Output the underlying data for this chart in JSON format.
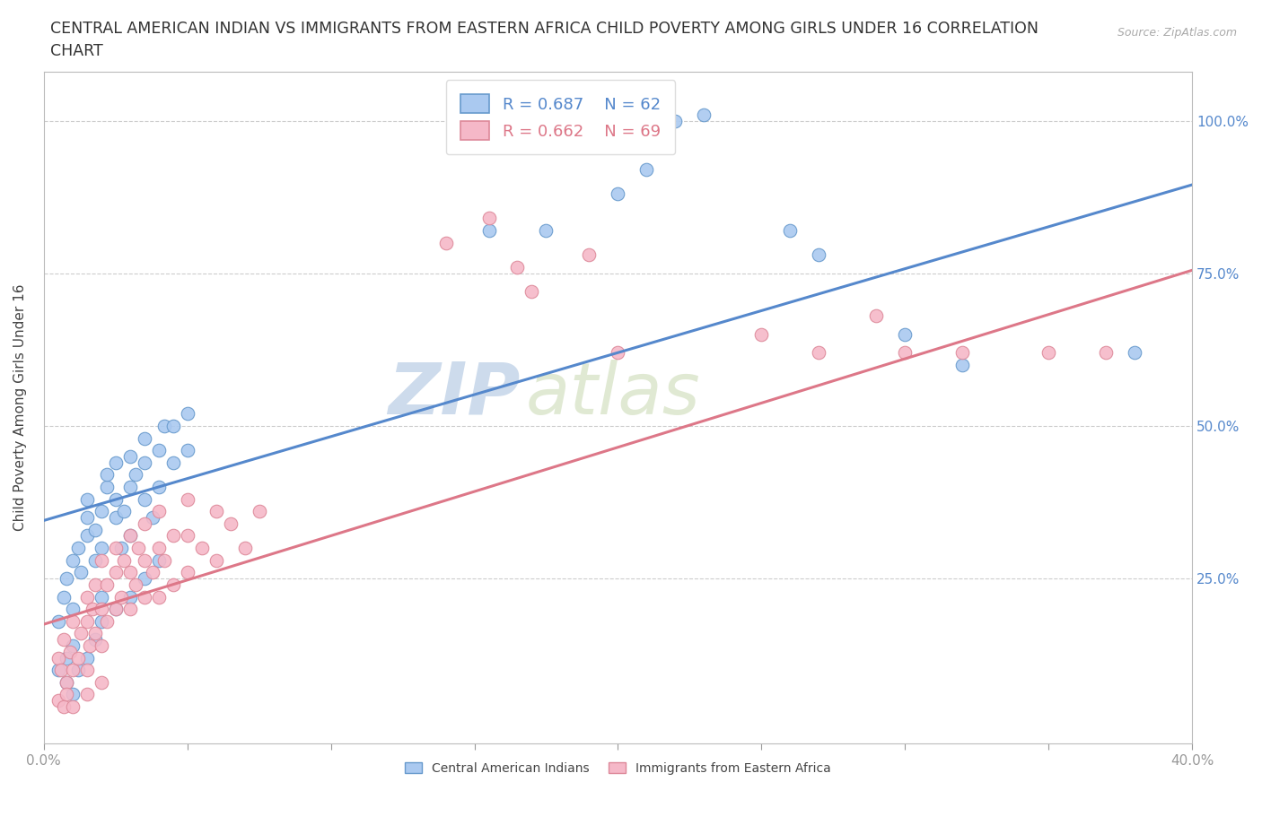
{
  "title_line1": "CENTRAL AMERICAN INDIAN VS IMMIGRANTS FROM EASTERN AFRICA CHILD POVERTY AMONG GIRLS UNDER 16 CORRELATION",
  "title_line2": "CHART",
  "source_text": "Source: ZipAtlas.com",
  "ylabel": "Child Poverty Among Girls Under 16",
  "watermark_zip": "ZIP",
  "watermark_atlas": "atlas",
  "xlim": [
    0.0,
    0.4
  ],
  "ylim": [
    -0.02,
    1.08
  ],
  "yticks": [
    0.25,
    0.5,
    0.75,
    1.0
  ],
  "ytick_labels": [
    "25.0%",
    "50.0%",
    "75.0%",
    "100.0%"
  ],
  "xticks": [
    0.0,
    0.05,
    0.1,
    0.15,
    0.2,
    0.25,
    0.3,
    0.35,
    0.4
  ],
  "xtick_labels": [
    "0.0%",
    "",
    "",
    "",
    "",
    "",
    "",
    "",
    "40.0%"
  ],
  "blue_R": 0.687,
  "blue_N": 62,
  "pink_R": 0.662,
  "pink_N": 69,
  "blue_color": "#aac9f0",
  "blue_edge_color": "#6699cc",
  "blue_line_color": "#5588cc",
  "pink_color": "#f5b8c8",
  "pink_edge_color": "#dd8899",
  "pink_line_color": "#dd7788",
  "legend_label_blue": "Central American Indians",
  "legend_label_pink": "Immigrants from Eastern Africa",
  "blue_line_x0": 0.0,
  "blue_line_y0": 0.345,
  "blue_line_x1": 0.4,
  "blue_line_y1": 0.895,
  "pink_line_x0": 0.0,
  "pink_line_y0": 0.175,
  "pink_line_x1": 0.4,
  "pink_line_y1": 0.755,
  "blue_scatter": [
    [
      0.005,
      0.18
    ],
    [
      0.007,
      0.22
    ],
    [
      0.008,
      0.25
    ],
    [
      0.01,
      0.2
    ],
    [
      0.01,
      0.28
    ],
    [
      0.012,
      0.3
    ],
    [
      0.013,
      0.26
    ],
    [
      0.015,
      0.32
    ],
    [
      0.015,
      0.35
    ],
    [
      0.015,
      0.38
    ],
    [
      0.018,
      0.28
    ],
    [
      0.018,
      0.33
    ],
    [
      0.02,
      0.22
    ],
    [
      0.02,
      0.3
    ],
    [
      0.02,
      0.36
    ],
    [
      0.022,
      0.4
    ],
    [
      0.022,
      0.42
    ],
    [
      0.025,
      0.35
    ],
    [
      0.025,
      0.38
    ],
    [
      0.025,
      0.44
    ],
    [
      0.027,
      0.3
    ],
    [
      0.028,
      0.36
    ],
    [
      0.03,
      0.32
    ],
    [
      0.03,
      0.4
    ],
    [
      0.03,
      0.45
    ],
    [
      0.032,
      0.42
    ],
    [
      0.035,
      0.38
    ],
    [
      0.035,
      0.44
    ],
    [
      0.035,
      0.48
    ],
    [
      0.038,
      0.35
    ],
    [
      0.04,
      0.4
    ],
    [
      0.04,
      0.46
    ],
    [
      0.042,
      0.5
    ],
    [
      0.045,
      0.44
    ],
    [
      0.045,
      0.5
    ],
    [
      0.05,
      0.46
    ],
    [
      0.05,
      0.52
    ],
    [
      0.005,
      0.1
    ],
    [
      0.008,
      0.12
    ],
    [
      0.01,
      0.14
    ],
    [
      0.012,
      0.1
    ],
    [
      0.015,
      0.12
    ],
    [
      0.018,
      0.15
    ],
    [
      0.02,
      0.18
    ],
    [
      0.025,
      0.2
    ],
    [
      0.03,
      0.22
    ],
    [
      0.035,
      0.25
    ],
    [
      0.04,
      0.28
    ],
    [
      0.008,
      0.08
    ],
    [
      0.01,
      0.06
    ],
    [
      0.155,
      0.82
    ],
    [
      0.175,
      0.82
    ],
    [
      0.2,
      0.88
    ],
    [
      0.21,
      0.92
    ],
    [
      0.215,
      0.97
    ],
    [
      0.22,
      1.0
    ],
    [
      0.23,
      1.01
    ],
    [
      0.26,
      0.82
    ],
    [
      0.27,
      0.78
    ],
    [
      0.3,
      0.65
    ],
    [
      0.32,
      0.6
    ],
    [
      0.38,
      0.62
    ]
  ],
  "pink_scatter": [
    [
      0.005,
      0.12
    ],
    [
      0.006,
      0.1
    ],
    [
      0.007,
      0.15
    ],
    [
      0.008,
      0.08
    ],
    [
      0.009,
      0.13
    ],
    [
      0.01,
      0.1
    ],
    [
      0.01,
      0.18
    ],
    [
      0.012,
      0.12
    ],
    [
      0.013,
      0.16
    ],
    [
      0.015,
      0.1
    ],
    [
      0.015,
      0.18
    ],
    [
      0.015,
      0.22
    ],
    [
      0.016,
      0.14
    ],
    [
      0.017,
      0.2
    ],
    [
      0.018,
      0.16
    ],
    [
      0.018,
      0.24
    ],
    [
      0.02,
      0.14
    ],
    [
      0.02,
      0.2
    ],
    [
      0.02,
      0.28
    ],
    [
      0.022,
      0.18
    ],
    [
      0.022,
      0.24
    ],
    [
      0.025,
      0.2
    ],
    [
      0.025,
      0.26
    ],
    [
      0.025,
      0.3
    ],
    [
      0.027,
      0.22
    ],
    [
      0.028,
      0.28
    ],
    [
      0.03,
      0.2
    ],
    [
      0.03,
      0.26
    ],
    [
      0.03,
      0.32
    ],
    [
      0.032,
      0.24
    ],
    [
      0.033,
      0.3
    ],
    [
      0.035,
      0.22
    ],
    [
      0.035,
      0.28
    ],
    [
      0.035,
      0.34
    ],
    [
      0.038,
      0.26
    ],
    [
      0.04,
      0.22
    ],
    [
      0.04,
      0.3
    ],
    [
      0.04,
      0.36
    ],
    [
      0.042,
      0.28
    ],
    [
      0.045,
      0.24
    ],
    [
      0.045,
      0.32
    ],
    [
      0.05,
      0.26
    ],
    [
      0.05,
      0.32
    ],
    [
      0.05,
      0.38
    ],
    [
      0.055,
      0.3
    ],
    [
      0.06,
      0.28
    ],
    [
      0.06,
      0.36
    ],
    [
      0.065,
      0.34
    ],
    [
      0.07,
      0.3
    ],
    [
      0.075,
      0.36
    ],
    [
      0.005,
      0.05
    ],
    [
      0.007,
      0.04
    ],
    [
      0.008,
      0.06
    ],
    [
      0.01,
      0.04
    ],
    [
      0.015,
      0.06
    ],
    [
      0.02,
      0.08
    ],
    [
      0.14,
      0.8
    ],
    [
      0.155,
      0.84
    ],
    [
      0.165,
      0.76
    ],
    [
      0.17,
      0.72
    ],
    [
      0.19,
      0.78
    ],
    [
      0.2,
      0.62
    ],
    [
      0.25,
      0.65
    ],
    [
      0.27,
      0.62
    ],
    [
      0.29,
      0.68
    ],
    [
      0.3,
      0.62
    ],
    [
      0.32,
      0.62
    ],
    [
      0.35,
      0.62
    ],
    [
      0.37,
      0.62
    ]
  ],
  "background_color": "#ffffff",
  "grid_color": "#cccccc",
  "title_fontsize": 12.5,
  "axis_label_fontsize": 11,
  "tick_fontsize": 11,
  "legend_fontsize": 13
}
